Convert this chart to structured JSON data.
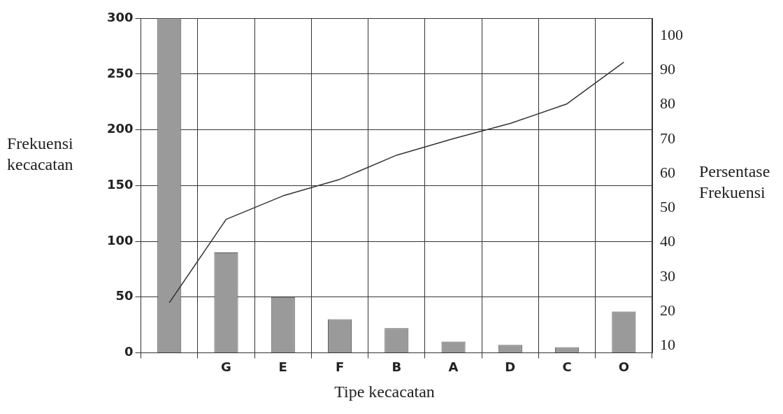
{
  "chart_data": {
    "type": "bar",
    "xlabel": "Tipe kecacatan",
    "ylabel": "Frekuensi kecacatan",
    "y2label": "Persentase Frekuensi",
    "categories": [
      null,
      "G",
      "E",
      "F",
      "B",
      "A",
      "D",
      "C",
      "O"
    ],
    "series": [
      {
        "color": "#9a9a9a",
        "values": [
          300,
          90,
          50,
          30,
          22,
          10,
          7,
          5,
          37
        ]
      },
      {
        "type": "line",
        "axis": "y2",
        "color": "#333333",
        "values": [
          22.5,
          46.7,
          53.5,
          58.3,
          65.3,
          70.1,
          74.5,
          80.2,
          92.3
        ]
      }
    ],
    "ylim": [
      0,
      300
    ],
    "yticks": [
      0,
      50,
      100,
      150,
      200,
      250,
      300
    ],
    "y2lim": [
      8,
      105
    ],
    "y2ticks": [
      10,
      20,
      30,
      40,
      50,
      60,
      70,
      80,
      90,
      100
    ],
    "grid": true,
    "legend": false,
    "marker": "none"
  }
}
